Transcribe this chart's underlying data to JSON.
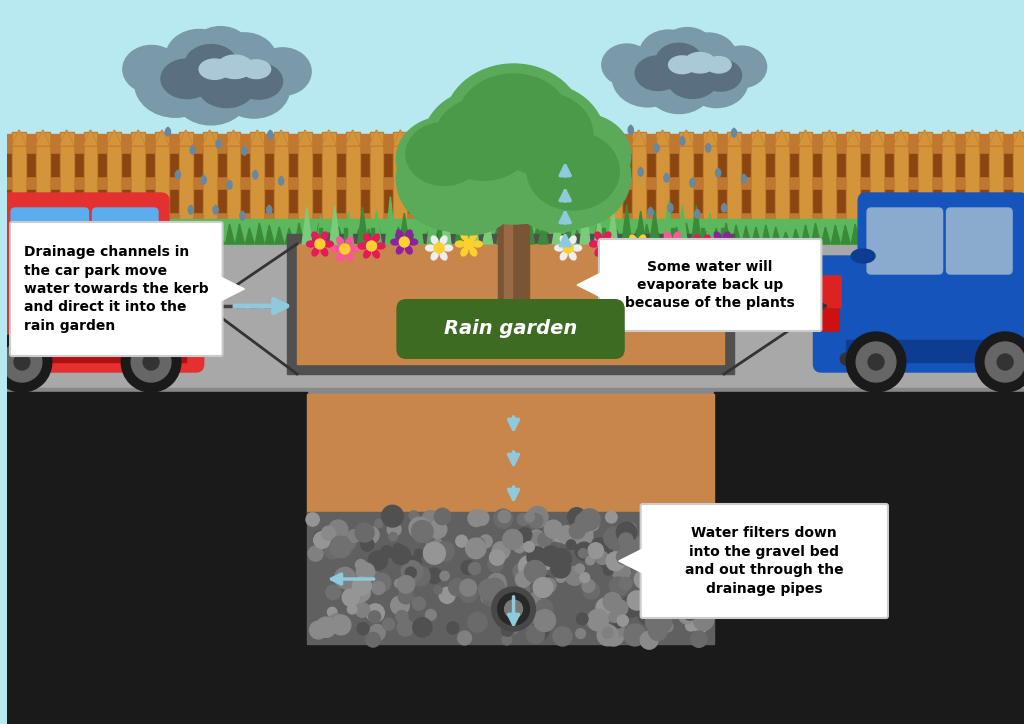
{
  "sky_color": "#b8e8f0",
  "road_color": "#a8a8a8",
  "road_dark": "#888888",
  "underground_dark": "#1a1a1a",
  "underground_mid": "#2a2a2a",
  "fence_color": "#c07830",
  "fence_dark": "#8B4510",
  "fence_light": "#d4943a",
  "grass_color": "#5cb85c",
  "grass_dark": "#3a8a3a",
  "soil_color": "#c8864a",
  "gravel_bg": "#606060",
  "border_color": "#505050",
  "rg_label_bg": "#3d6b22",
  "rg_label_text": "#ffffff",
  "arrow_color": "#90c8dc",
  "callout_bg": "#ffffff",
  "callout_border": "#cccccc",
  "car_red": "#e53030",
  "car_red_dark": "#b01010",
  "car_red_window": "#5aadee",
  "car_blue": "#1555bb",
  "car_blue_dark": "#0d3d90",
  "car_blue_window": "#8aaace",
  "cloud_dark": "#5a7080",
  "cloud_mid": "#7a9aaa",
  "cloud_light": "#aac8d5",
  "raindrop": "#6888a0",
  "tree_trunk": "#7a5535",
  "tree_c1": "#5aaa5a",
  "tree_c2": "#4a9a4a",
  "tree_c3": "#6abb6a",
  "flower_pink": "#e8185a",
  "flower_purple": "#9020a0",
  "flower_yellow": "#fdd030",
  "flower_white": "#eeeeee",
  "dashed_color": "#404040",
  "pipe_outer": "#484848",
  "pipe_inner": "#282828",
  "pipe_ring": "#787878",
  "text_drainage": "Drainage channels in\nthe car park move\nwater towards the kerb\nand direct it into the\nrain garden",
  "text_evaporate": "Some water will\nevaporate back up\nbecause of the plants",
  "text_filter": "Water filters down\ninto the gravel bed\nand out through the\ndrainage pipes",
  "text_rain_garden": "Rain garden",
  "white": "#ffffff",
  "black": "#000000"
}
